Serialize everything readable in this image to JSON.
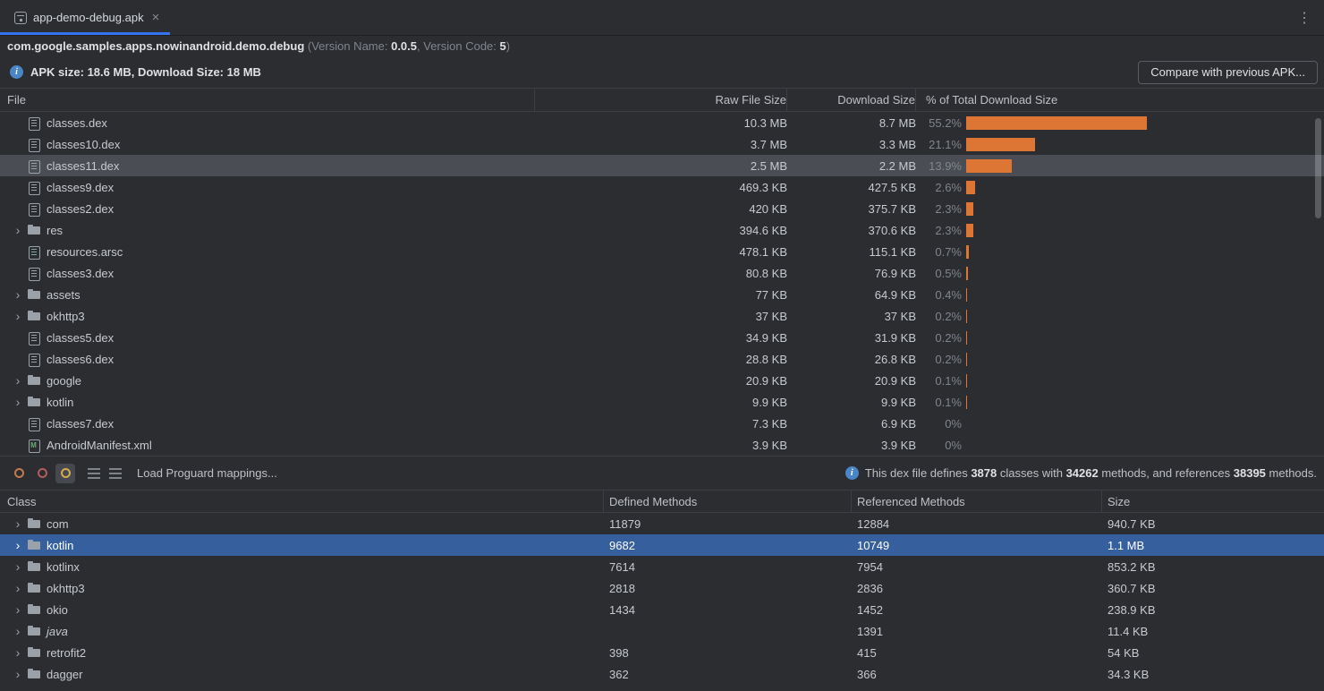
{
  "colors": {
    "accent_orange": "#dd7635",
    "selection_blue": "#365f9e",
    "selection_gray": "#4a4d53",
    "tab_underline": "#3574f0",
    "info_blue": "#4a86c7"
  },
  "tab_bar": {
    "tab_label": "app-demo-debug.apk",
    "close_glyph": "×",
    "overflow_glyph": "⋮"
  },
  "header": {
    "package_name": "com.google.samples.apps.nowinandroid.demo.debug",
    "version_open": " (Version Name: ",
    "version_name": "0.0.5",
    "version_code_label": ", Version Code: ",
    "version_code": "5",
    "version_close": ")"
  },
  "summary": {
    "apk_size_label": "APK size: ",
    "apk_size": "18.6 MB",
    "download_label": ", Download Size: ",
    "download_size": "18 MB",
    "compare_button_label": "Compare with previous APK..."
  },
  "file_table": {
    "columns": {
      "file": "File",
      "raw": "Raw File Size",
      "download": "Download Size",
      "pct": "% of Total Download Size"
    },
    "rows": [
      {
        "icon": "dex",
        "name": "classes.dex",
        "raw": "10.3 MB",
        "download": "8.7 MB",
        "pct": "55.2%",
        "pct_value": 55.2
      },
      {
        "icon": "dex",
        "name": "classes10.dex",
        "raw": "3.7 MB",
        "download": "3.3 MB",
        "pct": "21.1%",
        "pct_value": 21.1
      },
      {
        "icon": "dex",
        "name": "classes11.dex",
        "raw": "2.5 MB",
        "download": "2.2 MB",
        "pct": "13.9%",
        "pct_value": 13.9,
        "selected": true
      },
      {
        "icon": "dex",
        "name": "classes9.dex",
        "raw": "469.3 KB",
        "download": "427.5 KB",
        "pct": "2.6%",
        "pct_value": 2.6
      },
      {
        "icon": "dex",
        "name": "classes2.dex",
        "raw": "420 KB",
        "download": "375.7 KB",
        "pct": "2.3%",
        "pct_value": 2.3
      },
      {
        "icon": "folder",
        "name": "res",
        "raw": "394.6 KB",
        "download": "370.6 KB",
        "pct": "2.3%",
        "pct_value": 2.3,
        "expandable": true
      },
      {
        "icon": "arsc",
        "name": "resources.arsc",
        "raw": "478.1 KB",
        "download": "115.1 KB",
        "pct": "0.7%",
        "pct_value": 0.7
      },
      {
        "icon": "dex",
        "name": "classes3.dex",
        "raw": "80.8 KB",
        "download": "76.9 KB",
        "pct": "0.5%",
        "pct_value": 0.5
      },
      {
        "icon": "folder",
        "name": "assets",
        "raw": "77 KB",
        "download": "64.9 KB",
        "pct": "0.4%",
        "pct_value": 0.4,
        "expandable": true
      },
      {
        "icon": "folder",
        "name": "okhttp3",
        "raw": "37 KB",
        "download": "37 KB",
        "pct": "0.2%",
        "pct_value": 0.2,
        "expandable": true
      },
      {
        "icon": "dex",
        "name": "classes5.dex",
        "raw": "34.9 KB",
        "download": "31.9 KB",
        "pct": "0.2%",
        "pct_value": 0.2
      },
      {
        "icon": "dex",
        "name": "classes6.dex",
        "raw": "28.8 KB",
        "download": "26.8 KB",
        "pct": "0.2%",
        "pct_value": 0.2
      },
      {
        "icon": "folder",
        "name": "google",
        "raw": "20.9 KB",
        "download": "20.9 KB",
        "pct": "0.1%",
        "pct_value": 0.1,
        "expandable": true
      },
      {
        "icon": "folder",
        "name": "kotlin",
        "raw": "9.9 KB",
        "download": "9.9 KB",
        "pct": "0.1%",
        "pct_value": 0.1,
        "expandable": true
      },
      {
        "icon": "dex",
        "name": "classes7.dex",
        "raw": "7.3 KB",
        "download": "6.9 KB",
        "pct": "0%",
        "pct_value": 0
      },
      {
        "icon": "manifest",
        "name": "AndroidManifest.xml",
        "raw": "3.9 KB",
        "download": "3.9 KB",
        "pct": "0%",
        "pct_value": 0
      }
    ]
  },
  "dex_toolbar": {
    "load_mappings_label": "Load Proguard mappings...",
    "info": {
      "part1": "This dex file defines ",
      "classes_count": "3878",
      "part2": " classes with ",
      "methods_count": "34262",
      "part3": " methods, and references ",
      "references_count": "38395",
      "part4": " methods."
    }
  },
  "class_table": {
    "columns": {
      "class": "Class",
      "defined": "Defined Methods",
      "referenced": "Referenced Methods",
      "size": "Size"
    },
    "rows": [
      {
        "icon": "package",
        "name": "com",
        "defined": "11879",
        "referenced": "12884",
        "size": "940.7 KB",
        "expandable": true
      },
      {
        "icon": "package",
        "name": "kotlin",
        "defined": "9682",
        "referenced": "10749",
        "size": "1.1 MB",
        "expandable": true,
        "selected": true
      },
      {
        "icon": "package",
        "name": "kotlinx",
        "defined": "7614",
        "referenced": "7954",
        "size": "853.2 KB",
        "expandable": true
      },
      {
        "icon": "package",
        "name": "okhttp3",
        "defined": "2818",
        "referenced": "2836",
        "size": "360.7 KB",
        "expandable": true
      },
      {
        "icon": "package",
        "name": "okio",
        "defined": "1434",
        "referenced": "1452",
        "size": "238.9 KB",
        "expandable": true
      },
      {
        "icon": "package",
        "name": "java",
        "defined": "",
        "referenced": "1391",
        "size": "11.4 KB",
        "expandable": true,
        "italic": true
      },
      {
        "icon": "package",
        "name": "retrofit2",
        "defined": "398",
        "referenced": "415",
        "size": "54 KB",
        "expandable": true
      },
      {
        "icon": "package",
        "name": "dagger",
        "defined": "362",
        "referenced": "366",
        "size": "34.3 KB",
        "expandable": true
      }
    ]
  }
}
